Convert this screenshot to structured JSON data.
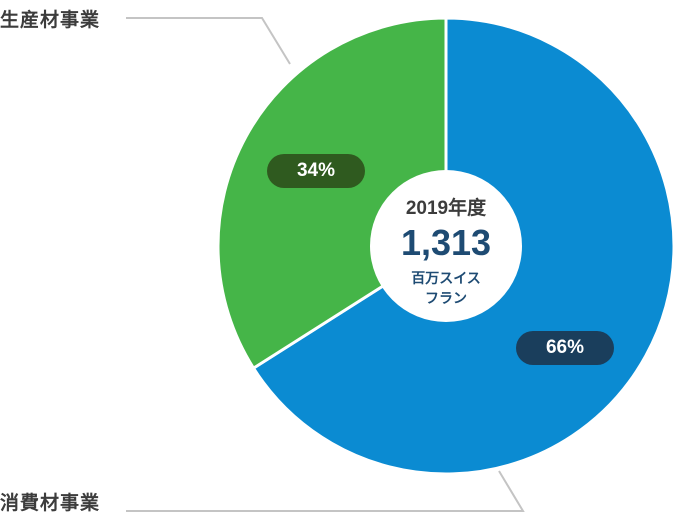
{
  "chart_data": {
    "type": "pie",
    "categories": [
      "消費材事業",
      "生産材事業"
    ],
    "values": [
      66,
      34
    ],
    "value_labels": [
      "66%",
      "34%"
    ],
    "colors": [
      "#0b8bd2",
      "#45b548"
    ],
    "center": {
      "year": "2019年度",
      "total": "1,313",
      "unit_line1": "百万スイス",
      "unit_line2": "フラン"
    }
  }
}
